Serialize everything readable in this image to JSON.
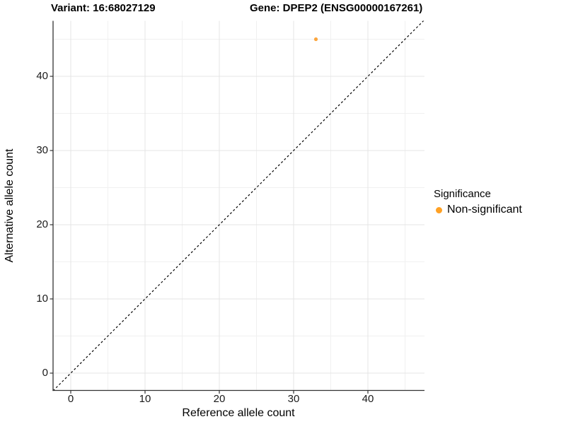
{
  "chart_data": {
    "type": "scatter",
    "titles": {
      "left": "Variant: 16:68027129",
      "right": "Gene: DPEP2 (ENSG00000167261)"
    },
    "xlabel": "Reference allele count",
    "ylabel": "Alternative allele count",
    "xlim": [
      -2.4,
      47.6
    ],
    "ylim": [
      -2.3,
      47.4
    ],
    "x_ticks": [
      0,
      10,
      20,
      30,
      40
    ],
    "y_ticks": [
      0,
      10,
      20,
      30,
      40
    ],
    "x_minor": [
      5,
      15,
      25,
      35,
      45
    ],
    "y_minor": [
      5,
      15,
      25,
      35,
      45
    ],
    "grid": "major+minor",
    "points": [
      {
        "x": 33,
        "y": 45,
        "series": "Non-significant"
      }
    ],
    "reference_line": {
      "slope": 1,
      "intercept": 0,
      "linetype": "dashed",
      "color": "#000000"
    },
    "legend": {
      "position": "right",
      "title": "Significance",
      "items": [
        {
          "label": "Non-significant",
          "color": "#FFA124"
        }
      ]
    },
    "colors": {
      "point": "#FBA53E",
      "axis_line": "#333333",
      "tick_text": "#1a1a1a",
      "grid_major": "#E4E4E4",
      "grid_minor": "#F0F0F0",
      "background": "#FFFFFF"
    }
  }
}
